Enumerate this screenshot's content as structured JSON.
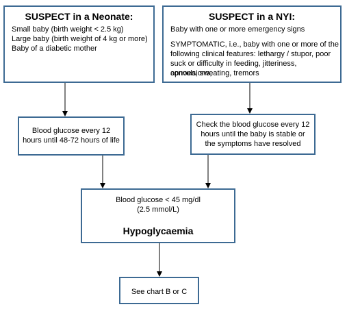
{
  "neonate": {
    "title": "SUSPECT in a Neonate:",
    "lines": [
      "Small baby (birth weight < 2.5 kg)",
      "Large baby (birth weight of 4 kg or more)",
      "Baby of a diabetic mother"
    ]
  },
  "nyi": {
    "title": "SUSPECT in a NYI:",
    "line1": "Baby with one or more emergency signs",
    "symptomatic": [
      "SYMPTOMATIC, i.e., baby with one or more of the",
      "following clinical features: lethargy / stupor, poor",
      "suck or difficulty in feeding, jitteriness, convulsions,",
      "apnoea, sweating, tremors"
    ]
  },
  "glucose_left": {
    "lines": [
      "Blood glucose every 12",
      "hours until 48-72 hours of life"
    ]
  },
  "glucose_right": {
    "lines": [
      "Check the blood glucose every 12",
      "hours until the baby is stable or",
      "the symptoms have resolved"
    ]
  },
  "hypo": {
    "line1": "Blood glucose < 45 mg/dl",
    "line2": "(2.5 mmol/L)",
    "title": "Hypoglycaemia"
  },
  "final": {
    "label": "See chart B or C"
  }
}
